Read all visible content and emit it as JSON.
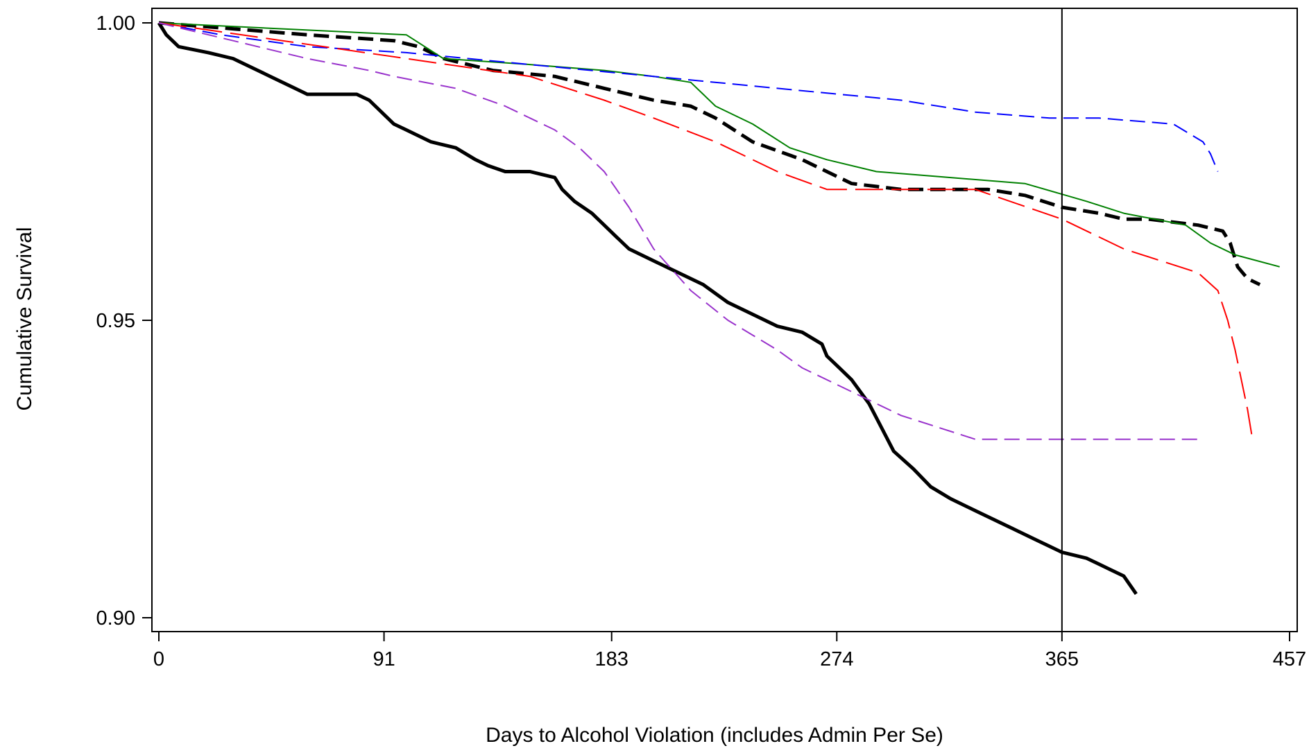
{
  "chart_data": {
    "type": "line",
    "title": "",
    "xlabel": "Days to Alcohol Violation (includes Admin Per Se)",
    "ylabel": "Cumulative Survival",
    "x_ticks": [
      "0",
      "91",
      "183",
      "274",
      "365",
      "457"
    ],
    "y_ticks": [
      "0.90",
      "0.95",
      "1.00"
    ],
    "xlim": [
      0,
      457
    ],
    "ylim": [
      0.9,
      1.0
    ],
    "grid": false,
    "reference_line_x": 365,
    "series": [
      {
        "color": "#000000",
        "style": "solid",
        "weight": "thick",
        "x": [
          0,
          3,
          8,
          20,
          30,
          40,
          45,
          55,
          60,
          70,
          80,
          85,
          90,
          95,
          100,
          110,
          120,
          128,
          133,
          140,
          150,
          160,
          163,
          168,
          175,
          180,
          185,
          190,
          200,
          210,
          220,
          230,
          240,
          250,
          260,
          268,
          270,
          275,
          280,
          287,
          292,
          297,
          305,
          312,
          320,
          330,
          345,
          355,
          360,
          365,
          375,
          380,
          385,
          390,
          395
        ],
        "y": [
          1.0,
          0.998,
          0.996,
          0.995,
          0.994,
          0.992,
          0.991,
          0.989,
          0.988,
          0.988,
          0.988,
          0.987,
          0.985,
          0.983,
          0.982,
          0.98,
          0.979,
          0.977,
          0.976,
          0.975,
          0.975,
          0.974,
          0.972,
          0.97,
          0.968,
          0.966,
          0.964,
          0.962,
          0.96,
          0.958,
          0.956,
          0.953,
          0.951,
          0.949,
          0.948,
          0.946,
          0.944,
          0.942,
          0.94,
          0.936,
          0.932,
          0.928,
          0.925,
          0.922,
          0.92,
          0.918,
          0.915,
          0.913,
          0.912,
          0.911,
          0.91,
          0.909,
          0.908,
          0.907,
          0.904
        ]
      },
      {
        "color": "#000000",
        "style": "dash",
        "weight": "thick",
        "x": [
          0,
          30,
          60,
          95,
          105,
          115,
          135,
          160,
          180,
          200,
          215,
          225,
          240,
          260,
          270,
          280,
          300,
          320,
          335,
          350,
          365,
          380,
          390,
          400,
          420,
          430,
          433,
          436,
          440,
          445
        ],
        "y": [
          1.0,
          0.999,
          0.998,
          0.997,
          0.996,
          0.994,
          0.992,
          0.991,
          0.989,
          0.987,
          0.986,
          0.984,
          0.98,
          0.977,
          0.975,
          0.973,
          0.972,
          0.972,
          0.972,
          0.971,
          0.969,
          0.968,
          0.967,
          0.967,
          0.966,
          0.965,
          0.963,
          0.959,
          0.957,
          0.956
        ]
      },
      {
        "color": "#008000",
        "style": "solid",
        "weight": "thin",
        "x": [
          0,
          50,
          100,
          115,
          150,
          180,
          200,
          215,
          220,
          225,
          240,
          255,
          270,
          290,
          320,
          350,
          375,
          390,
          415,
          425,
          435,
          453
        ],
        "y": [
          1.0,
          0.999,
          0.998,
          0.994,
          0.993,
          0.992,
          0.991,
          0.99,
          0.988,
          0.986,
          0.983,
          0.979,
          0.977,
          0.975,
          0.974,
          0.973,
          0.97,
          0.968,
          0.966,
          0.963,
          0.961,
          0.959
        ]
      },
      {
        "color": "#0000ff",
        "style": "dash",
        "weight": "thin",
        "x": [
          0,
          25,
          60,
          100,
          150,
          200,
          250,
          300,
          330,
          360,
          380,
          410,
          422,
          425,
          428
        ],
        "y": [
          1.0,
          0.998,
          0.996,
          0.995,
          0.993,
          0.991,
          0.989,
          0.987,
          0.985,
          0.984,
          0.984,
          0.983,
          0.98,
          0.978,
          0.975
        ]
      },
      {
        "color": "#ff0000",
        "style": "longdash",
        "weight": "thin",
        "x": [
          0,
          50,
          100,
          150,
          180,
          200,
          225,
          250,
          270,
          290,
          310,
          330,
          365,
          390,
          420,
          428,
          432,
          435,
          440,
          442
        ],
        "y": [
          1.0,
          0.997,
          0.994,
          0.991,
          0.987,
          0.984,
          0.98,
          0.975,
          0.972,
          0.972,
          0.972,
          0.972,
          0.967,
          0.962,
          0.958,
          0.955,
          0.95,
          0.945,
          0.935,
          0.93
        ]
      },
      {
        "color": "#9933cc",
        "style": "dash",
        "weight": "thin",
        "x": [
          0,
          30,
          60,
          85,
          95,
          120,
          140,
          150,
          160,
          170,
          180,
          190,
          200,
          215,
          230,
          250,
          260,
          280,
          300,
          330,
          360,
          390,
          420
        ],
        "y": [
          1.0,
          0.997,
          0.994,
          0.992,
          0.991,
          0.989,
          0.986,
          0.984,
          0.982,
          0.979,
          0.975,
          0.969,
          0.962,
          0.955,
          0.95,
          0.945,
          0.942,
          0.938,
          0.934,
          0.93,
          0.93,
          0.93,
          0.93
        ]
      }
    ]
  }
}
